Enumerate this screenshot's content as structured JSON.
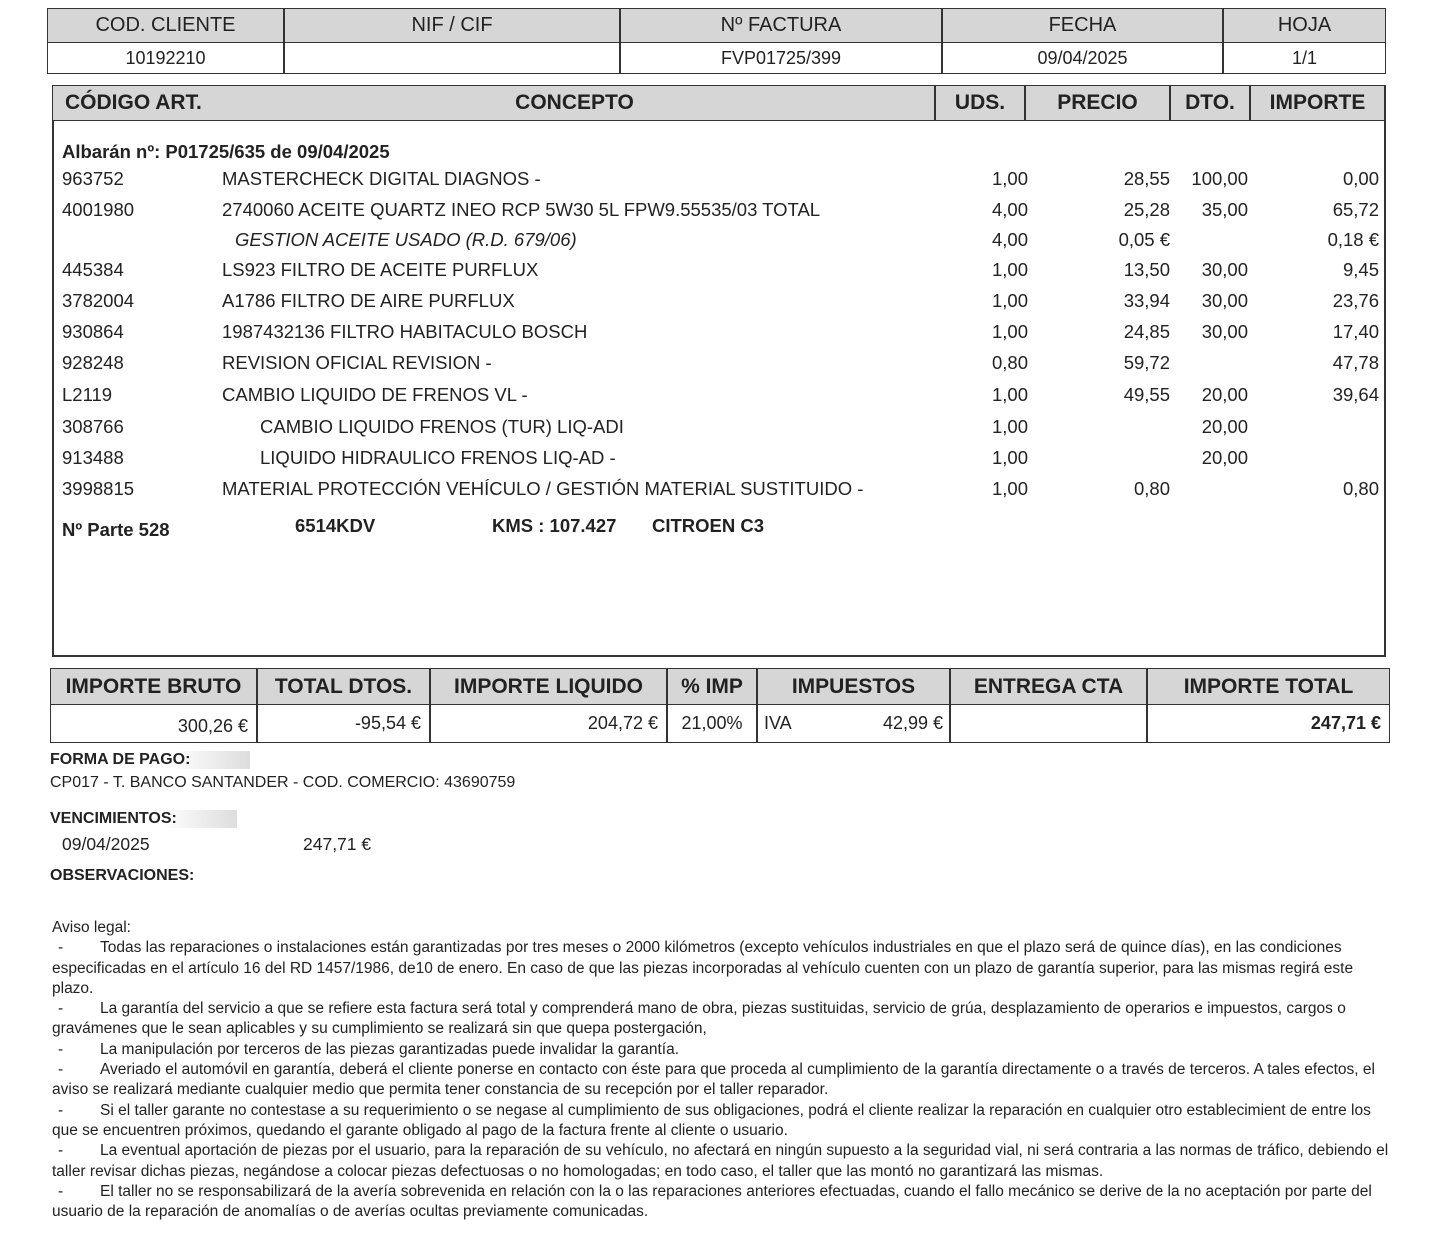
{
  "header": {
    "cols": [
      "COD. CLIENTE",
      "NIF / CIF",
      "Nº FACTURA",
      "FECHA",
      "HOJA"
    ],
    "values": [
      "10192210",
      "",
      "FVP01725/399",
      "09/04/2025",
      "1/1"
    ]
  },
  "items_header": [
    "CÓDIGO ART.",
    "CONCEPTO",
    "UDS.",
    "PRECIO",
    "DTO.",
    "IMPORTE"
  ],
  "albaran": "Albarán nº: P01725/635 de 09/04/2025",
  "items": [
    {
      "code": "963752",
      "concept": "MASTERCHECK DIGITAL DIAGNOS -",
      "uds": "1,00",
      "precio": "28,55",
      "dto": "100,00",
      "importe": "0,00"
    },
    {
      "code": "4001980",
      "concept": "2740060 ACEITE QUARTZ INEO RCP 5W30 5L FPW9.55535/03 TOTAL",
      "uds": "4,00",
      "precio": "25,28",
      "dto": "35,00",
      "importe": "65,72"
    },
    {
      "code": "",
      "concept": "GESTION ACEITE USADO (R.D. 679/06)",
      "uds": "4,00",
      "precio": "0,05 €",
      "dto": "",
      "importe": "0,18 €"
    },
    {
      "code": "445384",
      "concept": "LS923 FILTRO DE ACEITE PURFLUX",
      "uds": "1,00",
      "precio": "13,50",
      "dto": "30,00",
      "importe": "9,45"
    },
    {
      "code": "3782004",
      "concept": "A1786 FILTRO DE AIRE PURFLUX",
      "uds": "1,00",
      "precio": "33,94",
      "dto": "30,00",
      "importe": "23,76"
    },
    {
      "code": "930864",
      "concept": "1987432136 FILTRO HABITACULO BOSCH",
      "uds": "1,00",
      "precio": "24,85",
      "dto": "30,00",
      "importe": "17,40"
    },
    {
      "code": "928248",
      "concept": "REVISION OFICIAL REVISION -",
      "uds": "0,80",
      "precio": "59,72",
      "dto": "",
      "importe": "47,78"
    },
    {
      "code": "L2119",
      "concept": "CAMBIO LIQUIDO DE FRENOS VL -",
      "uds": "1,00",
      "precio": "49,55",
      "dto": "20,00",
      "importe": "39,64"
    },
    {
      "code": "308766",
      "concept": "CAMBIO LIQUIDO FRENOS (TUR) LIQ-ADI",
      "uds": "1,00",
      "precio": "",
      "dto": "20,00",
      "importe": ""
    },
    {
      "code": "913488",
      "concept": "LIQUIDO HIDRAULICO FRENOS LIQ-AD -",
      "uds": "1,00",
      "precio": "",
      "dto": "20,00",
      "importe": ""
    },
    {
      "code": "3998815",
      "concept": "MATERIAL PROTECCIÓN VEHÍCULO / GESTIÓN MATERIAL SUSTITUIDO -",
      "uds": "1,00",
      "precio": "0,80",
      "dto": "",
      "importe": "0,80"
    }
  ],
  "parte": {
    "num": "Nº Parte 528",
    "plate": "6514KDV",
    "kms": "KMS : 107.427",
    "model": "CITROEN C3"
  },
  "totals": {
    "cols": [
      "IMPORTE BRUTO",
      "TOTAL DTOS.",
      "IMPORTE LIQUIDO",
      "% IMP",
      "IMPUESTOS",
      "ENTREGA CTA",
      "IMPORTE TOTAL"
    ],
    "bruto": "300,26 €",
    "dtos": "-95,54 €",
    "liquido": "204,72 €",
    "pct": "21,00%",
    "tax_name": "IVA",
    "tax": "42,99 €",
    "entrega": "",
    "total": "247,71 €"
  },
  "payment": {
    "label": "FORMA DE PAGO:",
    "value": "CP017 - T. BANCO SANTANDER  - COD. COMERCIO: 43690759"
  },
  "due": {
    "label": "VENCIMIENTOS:",
    "date": "09/04/2025",
    "amount": "247,71 €"
  },
  "obs_label": "OBSERVACIONES:",
  "legal": {
    "title": "Aviso legal:",
    "items": [
      "Todas las reparaciones o instalaciones están garantizadas por tres meses o 2000 kilómetros (excepto vehículos industriales en que el plazo será de quince días), en las condiciones especificadas en el artículo 16 del RD 1457/1986, de10 de enero. En caso de que las piezas incorporadas al vehículo cuenten con un plazo de garantía superior, para las mismas regirá este plazo.",
      "La garantía del servicio a que se refiere esta factura será total y comprenderá mano de obra, piezas sustituidas, servicio de grúa, desplazamiento de operarios e impuestos, cargos o gravámenes que le sean aplicables y su cumplimiento se realizará sin que quepa postergación,",
      "La manipulación por terceros de las piezas garantizadas puede invalidar la garantía.",
      "Averiado el automóvil en garantía, deberá el cliente ponerse en contacto con éste para que proceda al cumplimiento de la garantía directamente o a través de terceros. A tales efectos, el aviso se realizará mediante cualquier medio que permita tener constancia de su recepción por el taller reparador.",
      "Si el taller garante no contestase a su requerimiento o se negase al cumplimiento de sus obligaciones, podrá el cliente realizar la reparación en cualquier otro establecimient de entre los que se encuentren próximos, quedando el garante obligado al pago de la factura frente al cliente o usuario.",
      "La eventual aportación de piezas por el usuario, para la reparación de su vehículo, no afectará en ningún supuesto a la seguridad vial, ni será contraria a las normas de tráfico, debiendo el taller revisar dichas piezas, negándose a colocar piezas defectuosas o no homologadas; en todo caso, el taller que las montó no garantizará las mismas.",
      "El taller no se responsabilizará de la avería sobrevenida en relación con la o las reparaciones anteriores efectuadas, cuando el fallo mecánico se derive de la no aceptación por parte del usuario de la reparación de anomalías o de averías ocultas previamente comunicadas."
    ]
  }
}
